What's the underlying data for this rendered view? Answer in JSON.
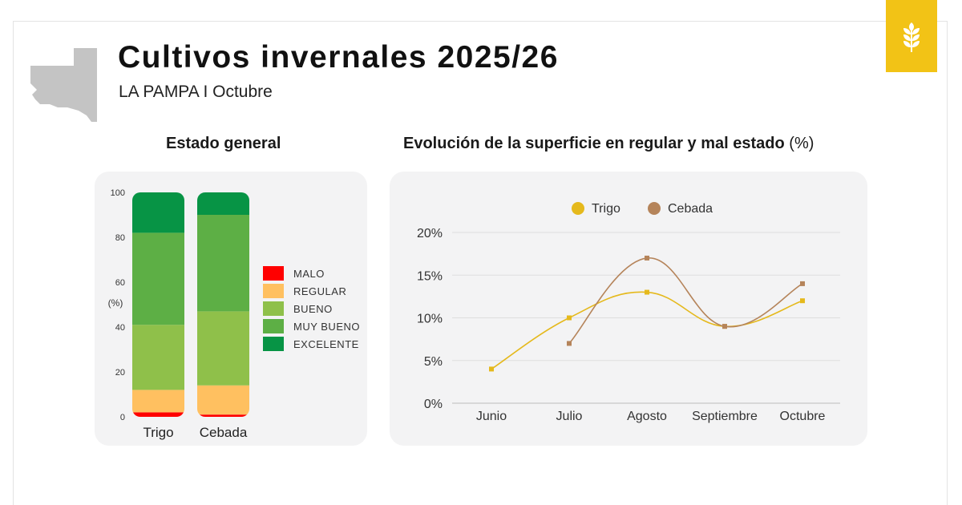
{
  "header": {
    "title": "Cultivos invernales 2025/26",
    "subtitle": "LA PAMPA I Octubre",
    "badge_icon": "wheat-icon",
    "map_icon": "la-pampa-map-icon"
  },
  "colors": {
    "accent": "#f2c316",
    "panel_bg": "#f3f3f4",
    "malo": "#ff0000",
    "regular": "#ffc060",
    "bueno": "#8fc04a",
    "muy_bueno": "#5daf45",
    "excelente": "#079445",
    "trigo": "#e5b91c",
    "cebada": "#b5845a"
  },
  "sections": {
    "estado_title": "Estado general",
    "evolucion_title": "Evolución de la superficie en regular y mal estado",
    "evolucion_unit": "(%)"
  },
  "chart_data": [
    {
      "type": "bar",
      "stacked": true,
      "title": "Estado general",
      "ylabel": "(%)",
      "ylim": [
        0,
        100
      ],
      "yticks": [
        "0",
        "20",
        "40",
        "60",
        "80",
        "100"
      ],
      "categories": [
        "Trigo",
        "Cebada"
      ],
      "series": [
        {
          "name": "MALO",
          "color": "#ff0000",
          "values": [
            2,
            1
          ]
        },
        {
          "name": "REGULAR",
          "color": "#ffc060",
          "values": [
            10,
            13
          ]
        },
        {
          "name": "BUENO",
          "color": "#8fc04a",
          "values": [
            29,
            33
          ]
        },
        {
          "name": "MUY BUENO",
          "color": "#5daf45",
          "values": [
            41,
            43
          ]
        },
        {
          "name": "EXCELENTE",
          "color": "#079445",
          "values": [
            18,
            10
          ]
        }
      ]
    },
    {
      "type": "line",
      "title": "Evolución de la superficie en regular y mal estado (%)",
      "categories": [
        "Junio",
        "Julio",
        "Agosto",
        "Septiembre",
        "Octubre"
      ],
      "ylim": [
        0,
        20
      ],
      "yticks": [
        "0%",
        "5%",
        "10%",
        "15%",
        "20%"
      ],
      "grid": true,
      "legend": "top-center",
      "series": [
        {
          "name": "Trigo",
          "color": "#e5b91c",
          "values": [
            4,
            10,
            13,
            9,
            12
          ]
        },
        {
          "name": "Cebada",
          "color": "#b5845a",
          "values": [
            null,
            7,
            17,
            9,
            14
          ]
        }
      ]
    }
  ]
}
